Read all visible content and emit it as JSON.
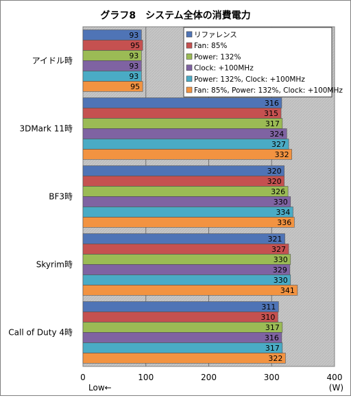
{
  "chart_data": {
    "type": "bar",
    "orientation": "horizontal",
    "title": "グラフ8　システム全体の消費電力",
    "unit_label": "(W)",
    "low_label": "Low←",
    "xlim": [
      0,
      400
    ],
    "x_ticks": [
      0,
      100,
      200,
      300,
      400
    ],
    "grid": true,
    "legend_position": "top-right",
    "categories": [
      "アイドル時",
      "3DMark 11時",
      "BF3時",
      "Skyrim時",
      "Call of Duty 4時"
    ],
    "series": [
      {
        "name": "リファレンス",
        "color": "#4f74b6",
        "values": [
          93,
          316,
          320,
          321,
          311
        ]
      },
      {
        "name": "Fan: 85%",
        "color": "#c55150",
        "values": [
          95,
          315,
          320,
          327,
          310
        ]
      },
      {
        "name": "Power: 132%",
        "color": "#9bbb55",
        "values": [
          93,
          317,
          326,
          330,
          317
        ]
      },
      {
        "name": "Clock: +100MHz",
        "color": "#7f63a2",
        "values": [
          93,
          324,
          330,
          329,
          316
        ]
      },
      {
        "name": "Power: 132%, Clock: +100MHz",
        "color": "#4aabc5",
        "values": [
          93,
          327,
          334,
          330,
          317
        ]
      },
      {
        "name": "Fan: 85%, Power: 132%, Clock: +100MHz",
        "color": "#f29341",
        "values": [
          95,
          332,
          336,
          341,
          322
        ]
      }
    ]
  }
}
